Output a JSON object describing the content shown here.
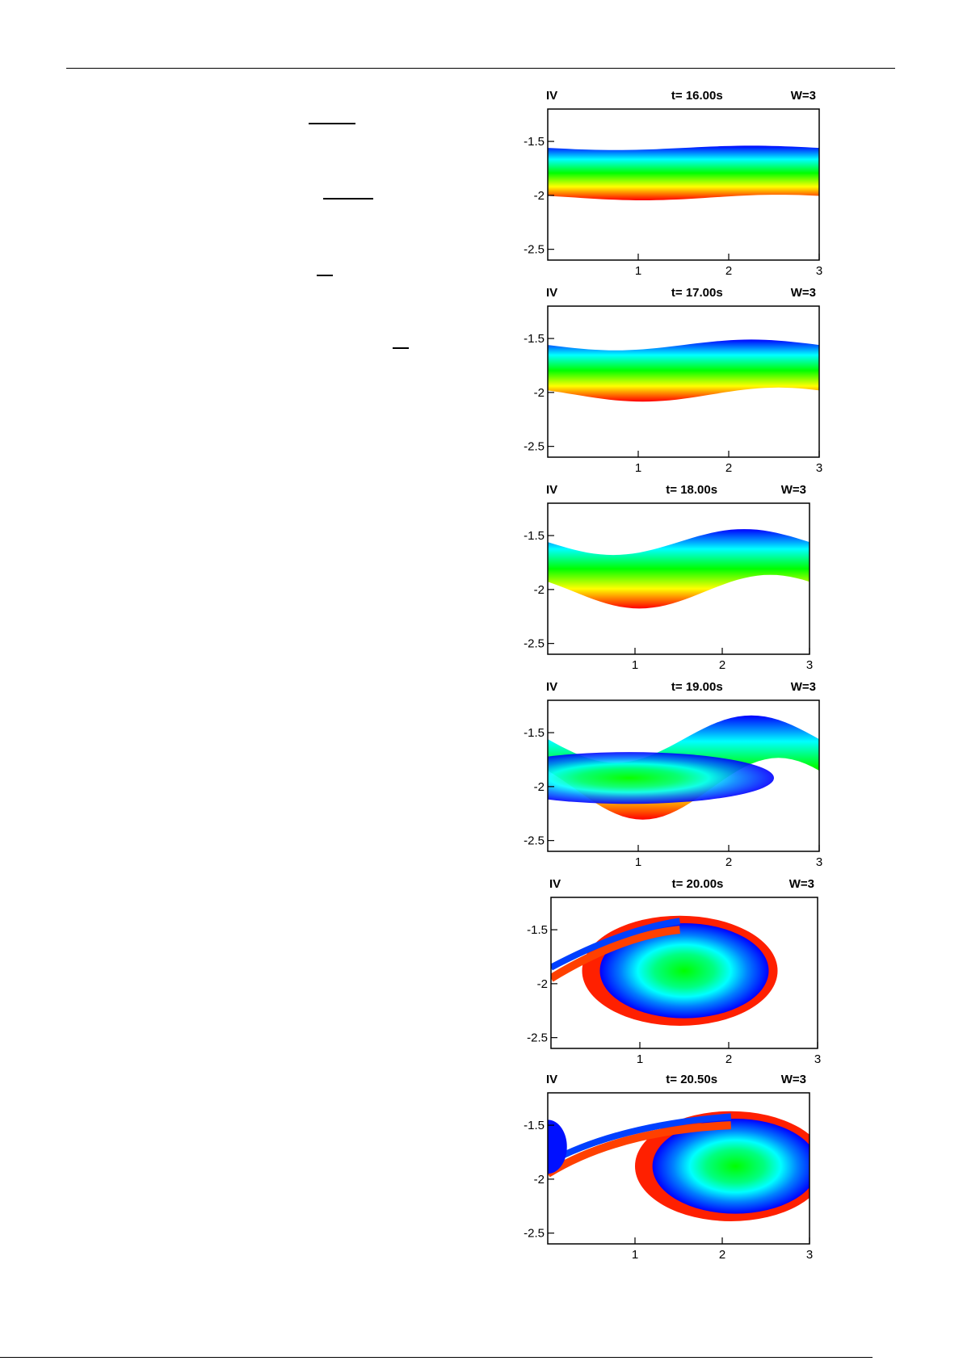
{
  "page": {
    "equation_bars": 4
  },
  "panels": [
    {
      "label": "IV",
      "time": "t= 16.00s",
      "w": "W=3",
      "stage": 0
    },
    {
      "label": "IV",
      "time": "t= 17.00s",
      "w": "W=3",
      "stage": 1
    },
    {
      "label": "IV",
      "time": "t= 18.00s",
      "w": "W=3",
      "stage": 2
    },
    {
      "label": "IV",
      "time": "t= 19.00s",
      "w": "W=3",
      "stage": 3
    },
    {
      "label": "IV",
      "time": "t= 20.00s",
      "w": "W=3",
      "stage": 4
    },
    {
      "label": "IV",
      "time": "t= 20.50s",
      "w": "W=3",
      "stage": 5
    }
  ],
  "chart_data": {
    "type": "heatmap",
    "x_ticks": [
      "1",
      "2",
      "3"
    ],
    "y_ticks": [
      "-1.5",
      "-2",
      "-2.5"
    ],
    "xlim": [
      0,
      3
    ],
    "ylim": [
      -2.6,
      -1.2
    ],
    "colormap": [
      "#0000ff",
      "#00ffff",
      "#00ff00",
      "#ffff00",
      "#ff0000"
    ]
  }
}
